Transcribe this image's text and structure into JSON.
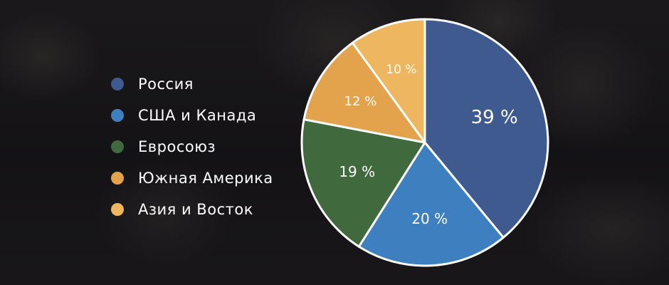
{
  "chart_data": {
    "type": "pie",
    "start_angle_deg": 0,
    "direction": "clockwise",
    "slices": [
      {
        "label": "Россия",
        "value": 39,
        "display": "39 %",
        "color": "#3f5a8f"
      },
      {
        "label": "США и Канада",
        "value": 20,
        "display": "20 %",
        "color": "#3e7fbf"
      },
      {
        "label": "Евросоюз",
        "value": 19,
        "display": "19 %",
        "color": "#406a3e"
      },
      {
        "label": "Южная Америка",
        "value": 12,
        "display": "12 %",
        "color": "#e3a34d"
      },
      {
        "label": "Азия и Восток",
        "value": 10,
        "display": "10 %",
        "color": "#eeb75f"
      }
    ],
    "legend_position": "left"
  }
}
